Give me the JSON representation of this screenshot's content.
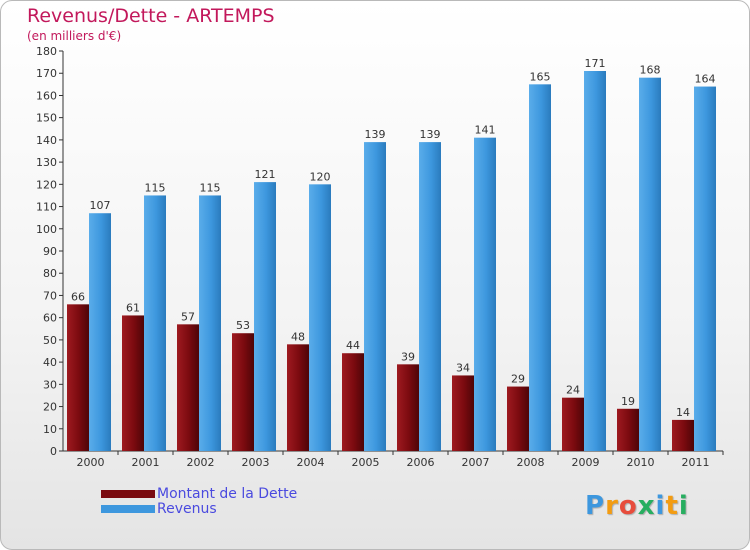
{
  "header": {
    "title": "Revenus/Dette - ARTEMPS",
    "subtitle": "(en milliers d'€)"
  },
  "legend": {
    "items": [
      {
        "label": "Montant de la Dette",
        "color": "#7a0a0f"
      },
      {
        "label": "Revenus",
        "color": "#3d97de"
      }
    ]
  },
  "logo": {
    "letters": [
      "P",
      "r",
      "o",
      "x",
      "i",
      "t",
      "i"
    ],
    "colors": [
      "#3d97de",
      "#f39c12",
      "#e74c3c",
      "#27ae60",
      "#3d97de",
      "#f39c12",
      "#27ae60"
    ]
  },
  "chart_data": {
    "type": "bar",
    "title": "Revenus/Dette - ARTEMPS",
    "subtitle": "(en milliers d'€)",
    "categories": [
      "2000",
      "2001",
      "2002",
      "2003",
      "2004",
      "2005",
      "2006",
      "2007",
      "2008",
      "2009",
      "2010",
      "2011"
    ],
    "series": [
      {
        "name": "Montant de la Dette",
        "color": "#7a0a0f",
        "values": [
          66,
          61,
          57,
          53,
          48,
          44,
          39,
          34,
          29,
          24,
          19,
          14
        ]
      },
      {
        "name": "Revenus",
        "color": "#3d97de",
        "values": [
          107,
          115,
          115,
          121,
          120,
          139,
          139,
          141,
          165,
          171,
          168,
          164
        ]
      }
    ],
    "ylim": [
      0,
      180
    ],
    "yticks": [
      0,
      10,
      20,
      30,
      40,
      50,
      60,
      70,
      80,
      90,
      100,
      110,
      120,
      130,
      140,
      150,
      160,
      170,
      180
    ],
    "grid": false,
    "legend": "bottom-left"
  }
}
